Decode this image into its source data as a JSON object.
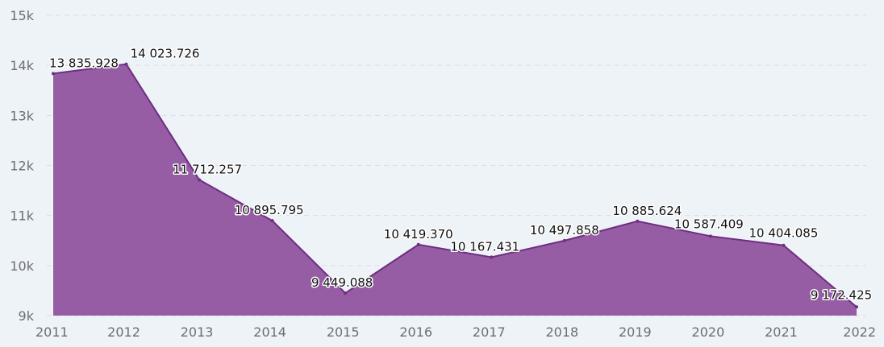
{
  "chart_data": {
    "type": "area",
    "title": "",
    "xlabel": "",
    "ylabel": "",
    "categories": [
      "2011",
      "2012",
      "2013",
      "2014",
      "2015",
      "2016",
      "2017",
      "2018",
      "2019",
      "2020",
      "2021",
      "2022"
    ],
    "values": [
      13835.928,
      14023.726,
      11712.257,
      10895.795,
      9449.088,
      10419.37,
      10167.431,
      10497.858,
      10885.624,
      10587.409,
      10404.085,
      9172.425
    ],
    "data_labels": [
      "13 835.928",
      "14 023.726",
      "11 712.257",
      "10 895.795",
      "9 449.088",
      "10 419.370",
      "10 167.431",
      "10 497.858",
      "10 885.624",
      "10 587.409",
      "10 404.085",
      "9 172.425"
    ],
    "ylim": [
      9000,
      15000
    ],
    "yticks": [
      9000,
      10000,
      11000,
      12000,
      13000,
      14000,
      15000
    ],
    "ytick_labels": [
      "9k",
      "10k",
      "11k",
      "12k",
      "13k",
      "14k",
      "15k"
    ],
    "grid": true,
    "legend": "none",
    "colors": {
      "fill": "#8e4f9c",
      "line": "#6e2f80",
      "background": "#eef3f7"
    }
  }
}
